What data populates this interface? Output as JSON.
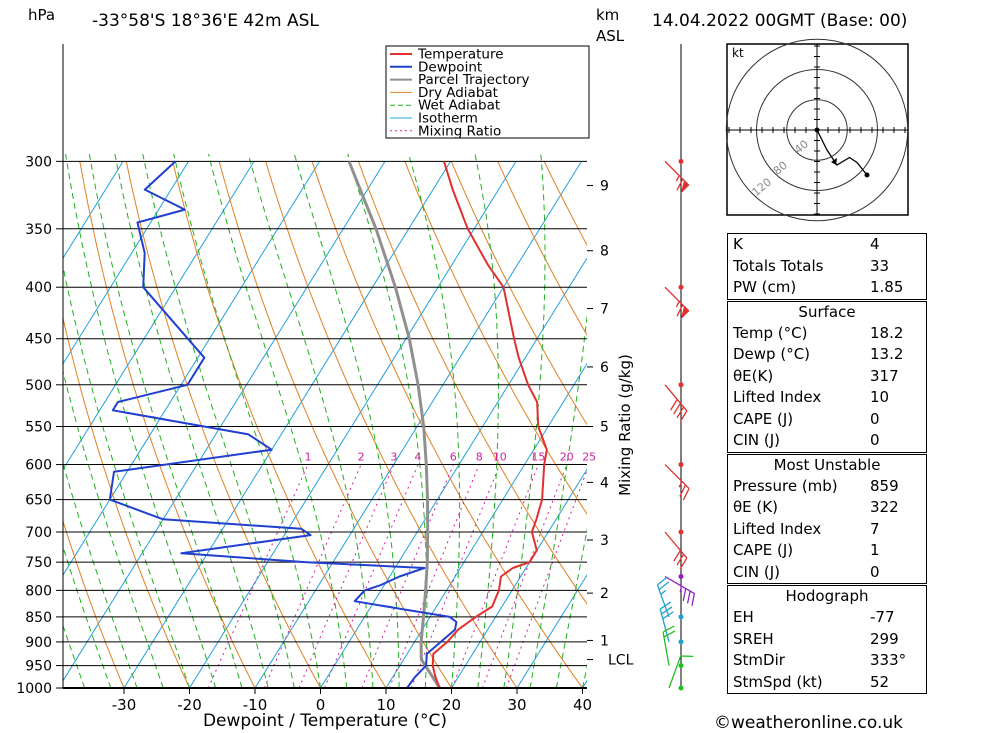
{
  "header": {
    "units_left": "hPa",
    "location": "-33°58'S  18°36'E  42m  ASL",
    "units_right_km": "km",
    "units_right_asl": "ASL",
    "datetime": "14.04.2022  00GMT  (Base: 00)"
  },
  "footer": {
    "credit": "©weatheronline.co.uk"
  },
  "hodograph": {
    "unit_label": "kt",
    "ring_labels": [
      "40",
      "80",
      "120"
    ]
  },
  "stats": {
    "indices": [
      {
        "label": "K",
        "value": "4"
      },
      {
        "label": "Totals Totals",
        "value": "33"
      },
      {
        "label": "PW (cm)",
        "value": "1.85"
      }
    ],
    "surface": {
      "title": "Surface",
      "rows": [
        {
          "label": "Temp (°C)",
          "value": "18.2"
        },
        {
          "label": "Dewp (°C)",
          "value": "13.2"
        },
        {
          "label": "θE(K)",
          "value": "317"
        },
        {
          "label": "Lifted Index",
          "value": "10"
        },
        {
          "label": "CAPE (J)",
          "value": "0"
        },
        {
          "label": "CIN (J)",
          "value": "0"
        }
      ]
    },
    "most_unstable": {
      "title": "Most Unstable",
      "rows": [
        {
          "label": "Pressure (mb)",
          "value": "859"
        },
        {
          "label": "θE (K)",
          "value": "322"
        },
        {
          "label": "Lifted Index",
          "value": "7"
        },
        {
          "label": "CAPE (J)",
          "value": "1"
        },
        {
          "label": "CIN (J)",
          "value": "0"
        }
      ]
    },
    "hodograph": {
      "title": "Hodograph",
      "rows": [
        {
          "label": "EH",
          "value": "-77"
        },
        {
          "label": "SREH",
          "value": "299"
        },
        {
          "label": "StmDir",
          "value": "333°"
        },
        {
          "label": "StmSpd (kt)",
          "value": "52"
        }
      ]
    }
  },
  "colors": {
    "temperature": "#e03030",
    "dewpoint": "#2040d0",
    "parcel": "#909090",
    "dry_adiabat": "#e08020",
    "wet_adiabat": "#20b020",
    "isotherm": "#20a0e0",
    "mixing_ratio": "#d020a0"
  },
  "chart_data": {
    "type": "skew-T log-P",
    "xlabel": "Dewpoint / Temperature (°C)",
    "ylabel_right": "Mixing Ratio (g/kg)",
    "legend": [
      "Temperature",
      "Dewpoint",
      "Parcel Trajectory",
      "Dry Adiabat",
      "Wet Adiabat",
      "Isotherm",
      "Mixing Ratio"
    ],
    "legend_position": "top-right",
    "x_ticks": [
      -30,
      -20,
      -10,
      0,
      10,
      20,
      30,
      40
    ],
    "pressure_levels": [
      300,
      350,
      400,
      450,
      500,
      550,
      600,
      650,
      700,
      750,
      800,
      850,
      900,
      950,
      1000
    ],
    "km_ticks": [
      {
        "label": "9",
        "p": 317
      },
      {
        "label": "8",
        "p": 368
      },
      {
        "label": "7",
        "p": 420
      },
      {
        "label": "6",
        "p": 480
      },
      {
        "label": "5",
        "p": 550
      },
      {
        "label": "4",
        "p": 625
      },
      {
        "label": "3",
        "p": 713
      },
      {
        "label": "2",
        "p": 805
      },
      {
        "label": "1",
        "p": 897
      },
      {
        "label": "LCL",
        "p": 937
      }
    ],
    "mixing_ratio_labels": [
      "1",
      "2",
      "3",
      "4",
      "6",
      "8",
      "10",
      "15",
      "20",
      "25"
    ],
    "mixing_ratio_values": [
      1,
      2,
      3,
      4,
      6,
      8,
      10,
      15,
      20,
      25
    ],
    "temperature": [
      [
        1000,
        18.2
      ],
      [
        975,
        16.5
      ],
      [
        950,
        15.0
      ],
      [
        925,
        14.0
      ],
      [
        900,
        15.0
      ],
      [
        875,
        15.5
      ],
      [
        850,
        17.0
      ],
      [
        830,
        18.5
      ],
      [
        800,
        18.0
      ],
      [
        775,
        17.0
      ],
      [
        760,
        18.0
      ],
      [
        750,
        20.0
      ],
      [
        730,
        20.0
      ],
      [
        700,
        17.5
      ],
      [
        680,
        17.0
      ],
      [
        650,
        16.0
      ],
      [
        600,
        13.0
      ],
      [
        580,
        12.0
      ],
      [
        550,
        8.5
      ],
      [
        520,
        6.0
      ],
      [
        500,
        3.0
      ],
      [
        470,
        -1.0
      ],
      [
        450,
        -3.5
      ],
      [
        400,
        -10.0
      ],
      [
        380,
        -14.5
      ],
      [
        350,
        -21.0
      ],
      [
        320,
        -27.0
      ],
      [
        300,
        -31.0
      ]
    ],
    "dewpoint": [
      [
        1000,
        13.2
      ],
      [
        975,
        13.4
      ],
      [
        950,
        14.0
      ],
      [
        925,
        13.0
      ],
      [
        900,
        14.0
      ],
      [
        875,
        15.0
      ],
      [
        860,
        14.5
      ],
      [
        850,
        13.0
      ],
      [
        835,
        5.0
      ],
      [
        820,
        -3.0
      ],
      [
        800,
        -2.5
      ],
      [
        790,
        -0.5
      ],
      [
        775,
        1.5
      ],
      [
        760,
        4.5
      ],
      [
        750,
        -14.0
      ],
      [
        735,
        -34.0
      ],
      [
        705,
        -16.0
      ],
      [
        695,
        -18.0
      ],
      [
        680,
        -40.0
      ],
      [
        650,
        -50.0
      ],
      [
        610,
        -52.0
      ],
      [
        580,
        -30.0
      ],
      [
        560,
        -35.0
      ],
      [
        530,
        -58.0
      ],
      [
        520,
        -58.0
      ],
      [
        500,
        -49.0
      ],
      [
        470,
        -49.0
      ],
      [
        400,
        -65.0
      ],
      [
        370,
        -68.0
      ],
      [
        345,
        -72.0
      ],
      [
        335,
        -66.0
      ],
      [
        320,
        -74.0
      ],
      [
        300,
        -72.0
      ]
    ],
    "parcel": [
      [
        1000,
        18.2
      ],
      [
        937,
        12.7
      ],
      [
        900,
        11.0
      ],
      [
        850,
        9.0
      ],
      [
        800,
        6.8
      ],
      [
        750,
        4.4
      ],
      [
        700,
        1.6
      ],
      [
        650,
        -1.5
      ],
      [
        600,
        -5.0
      ],
      [
        550,
        -9.0
      ],
      [
        500,
        -13.8
      ],
      [
        450,
        -19.5
      ],
      [
        400,
        -26.5
      ],
      [
        350,
        -35.0
      ],
      [
        300,
        -45.5
      ]
    ],
    "wind_barbs": [
      {
        "p": 300,
        "dir": 315,
        "kt": 65
      },
      {
        "p": 400,
        "dir": 315,
        "kt": 65
      },
      {
        "p": 500,
        "dir": 320,
        "kt": 40
      },
      {
        "p": 600,
        "dir": 315,
        "kt": 25
      },
      {
        "p": 700,
        "dir": 320,
        "kt": 30
      },
      {
        "p": 775,
        "dir": 300,
        "kt": 35
      },
      {
        "p": 850,
        "dir": 160,
        "kt": 25
      },
      {
        "p": 900,
        "dir": 165,
        "kt": 30
      },
      {
        "p": 950,
        "dir": 170,
        "kt": 20
      },
      {
        "p": 1000,
        "dir": 200,
        "kt": 10
      }
    ],
    "hodograph_points": [
      [
        0,
        0
      ],
      [
        4,
        -8
      ],
      [
        8,
        -14
      ],
      [
        13,
        -11
      ],
      [
        16,
        -13
      ],
      [
        20,
        -18
      ]
    ]
  }
}
